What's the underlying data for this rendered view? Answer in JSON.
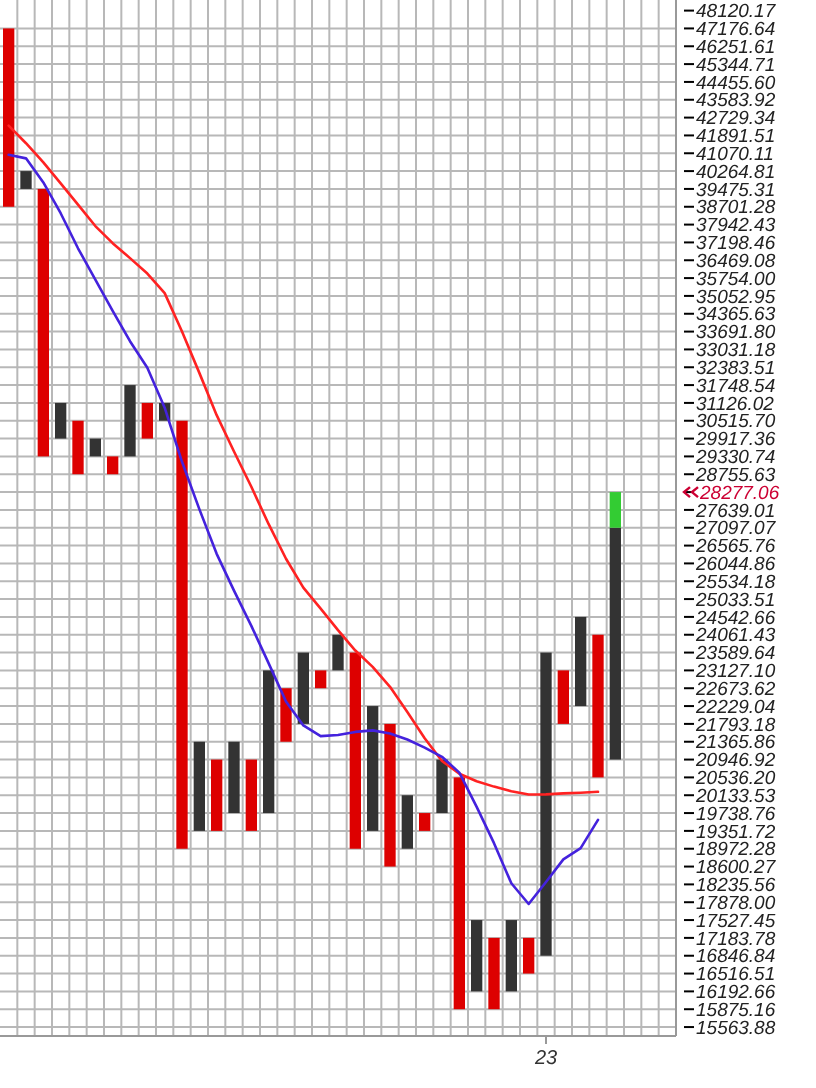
{
  "chart_data": {
    "type": "bar",
    "log": true,
    "grid": true,
    "ylim": [
      15410,
      48690
    ],
    "categories": [
      null,
      null,
      null,
      null,
      null,
      null,
      null,
      null,
      null,
      null,
      null,
      null,
      null,
      null,
      null,
      null,
      null,
      null,
      null,
      null,
      null,
      null,
      null,
      null,
      null,
      null,
      null,
      null,
      null,
      null,
      null,
      "23",
      null,
      null,
      null,
      null,
      null,
      null,
      null
    ],
    "yticks": [
      {
        "value": 15563.88,
        "label": "15563.88"
      },
      {
        "value": 15875.16,
        "label": "15875.16"
      },
      {
        "value": 16192.66,
        "label": "16192.66"
      },
      {
        "value": 16516.51,
        "label": "16516.51"
      },
      {
        "value": 16846.84,
        "label": "16846.84"
      },
      {
        "value": 17183.78,
        "label": "17183.78"
      },
      {
        "value": 17527.45,
        "label": "17527.45"
      },
      {
        "value": 17878,
        "label": "17878.00"
      },
      {
        "value": 18235.56,
        "label": "18235.56"
      },
      {
        "value": 18600.27,
        "label": "18600.27"
      },
      {
        "value": 18972.28,
        "label": "18972.28"
      },
      {
        "value": 19351.72,
        "label": "19351.72"
      },
      {
        "value": 19738.76,
        "label": "19738.76"
      },
      {
        "value": 20133.53,
        "label": "20133.53"
      },
      {
        "value": 20536.2,
        "label": "20536.20"
      },
      {
        "value": 20946.92,
        "label": "20946.92"
      },
      {
        "value": 21365.86,
        "label": "21365.86"
      },
      {
        "value": 21793.18,
        "label": "21793.18"
      },
      {
        "value": 22229.04,
        "label": "22229.04"
      },
      {
        "value": 22673.62,
        "label": "22673.62"
      },
      {
        "value": 23127.1,
        "label": "23127.10"
      },
      {
        "value": 23589.64,
        "label": "23589.64"
      },
      {
        "value": 24061.43,
        "label": "24061.43"
      },
      {
        "value": 24542.66,
        "label": "24542.66"
      },
      {
        "value": 25033.51,
        "label": "25033.51"
      },
      {
        "value": 25534.18,
        "label": "25534.18"
      },
      {
        "value": 26044.86,
        "label": "26044.86"
      },
      {
        "value": 26565.76,
        "label": "26565.76"
      },
      {
        "value": 27097.07,
        "label": "27097.07"
      },
      {
        "value": 27639.01,
        "label": "27639.01"
      },
      {
        "value": 28191.79,
        "label": null
      },
      {
        "value": 28755.63,
        "label": "28755.63"
      },
      {
        "value": 29330.74,
        "label": "29330.74"
      },
      {
        "value": 29917.36,
        "label": "29917.36"
      },
      {
        "value": 30515.7,
        "label": "30515.70"
      },
      {
        "value": 31126.02,
        "label": "31126.02"
      },
      {
        "value": 31748.54,
        "label": "31748.54"
      },
      {
        "value": 32383.51,
        "label": "32383.51"
      },
      {
        "value": 33031.18,
        "label": "33031.18"
      },
      {
        "value": 33691.8,
        "label": "33691.80"
      },
      {
        "value": 34365.63,
        "label": "34365.63"
      },
      {
        "value": 35052.95,
        "label": "35052.95"
      },
      {
        "value": 35754,
        "label": "35754.00"
      },
      {
        "value": 36469.08,
        "label": "36469.08"
      },
      {
        "value": 37198.46,
        "label": "37198.46"
      },
      {
        "value": 37942.43,
        "label": "37942.43"
      },
      {
        "value": 38701.28,
        "label": "38701.28"
      },
      {
        "value": 39475.31,
        "label": "39475.31"
      },
      {
        "value": 40264.81,
        "label": "40264.81"
      },
      {
        "value": 41070.11,
        "label": "41070.11"
      },
      {
        "value": 41891.51,
        "label": "41891.51"
      },
      {
        "value": 42729.34,
        "label": "42729.34"
      },
      {
        "value": 43583.92,
        "label": "43583.92"
      },
      {
        "value": 44455.6,
        "label": "44455.60"
      },
      {
        "value": 45344.71,
        "label": "45344.71"
      },
      {
        "value": 46251.61,
        "label": "46251.61"
      },
      {
        "value": 47176.64,
        "label": "47176.64"
      },
      {
        "value": 48120.17,
        "label": "48120.17"
      }
    ],
    "annotations": [
      "28277.06"
    ],
    "series": [
      {
        "base": [
          38701.28,
          39475.31,
          29330.74,
          29917.36,
          28755.63,
          29330.74,
          28755.63,
          29330.74,
          29917.36,
          30515.7,
          18972.28,
          19351.72,
          19351.72,
          19738.76,
          19351.72,
          19738.76,
          21365.86,
          21793.18,
          22673.62,
          23127.1,
          18972.28,
          19351.72,
          18600.27,
          18972.28,
          19351.72,
          19738.76,
          15875.16,
          16192.66,
          15875.16,
          16192.66,
          16516.51,
          16846.84,
          21793.18,
          22229.04,
          20536.2,
          20946.92,
          null,
          null,
          null
        ],
        "colors": [
          "#dd0000",
          "#333333",
          "#dd0000",
          "#333333",
          "#dd0000",
          "#333333",
          "#dd0000",
          "#333333",
          "#dd0000",
          "#333333",
          "#dd0000",
          "#333333",
          "#dd0000",
          "#333333",
          "#dd0000",
          "#333333",
          "#dd0000",
          "#333333",
          "#dd0000",
          "#333333",
          "#dd0000",
          "#333333",
          "#dd0000",
          "#333333",
          "#dd0000",
          "#333333",
          "#dd0000",
          "#333333",
          "#dd0000",
          "#333333",
          "#dd0000",
          "#333333",
          "#dd0000",
          "#333333",
          "#dd0000",
          "#333333",
          null,
          null,
          null
        ],
        "values": [
          8475.36,
          789.5,
          10144.57,
          1208.66,
          1760.07,
          586.62,
          575.11,
          2417.8,
          1208.66,
          610.32,
          11543.42,
          2014.14,
          1595.2,
          1627.1,
          1595.2,
          3388.34,
          1307.76,
          1796.46,
          453.48,
          934.33,
          4617.36,
          2877.32,
          3192.91,
          1161.25,
          387.04,
          1208.16,
          4661.04,
          1334.79,
          1308.62,
          1334.79,
          667.27,
          6742.8,
          1333.92,
          2313.62,
          3525.23,
          6150.15,
          null,
          null,
          null
        ]
      },
      {
        "color": "#33cc33",
        "base": [
          null,
          null,
          null,
          null,
          null,
          null,
          null,
          null,
          null,
          null,
          null,
          null,
          null,
          null,
          null,
          null,
          null,
          null,
          null,
          null,
          null,
          null,
          null,
          null,
          null,
          null,
          null,
          null,
          null,
          null,
          null,
          null,
          null,
          null,
          null,
          27097.07,
          null,
          null,
          null
        ],
        "values": [
          null,
          null,
          null,
          null,
          null,
          null,
          null,
          null,
          null,
          null,
          null,
          null,
          null,
          null,
          null,
          null,
          null,
          null,
          null,
          null,
          null,
          null,
          null,
          null,
          null,
          null,
          null,
          null,
          null,
          null,
          null,
          null,
          null,
          null,
          null,
          1094.72,
          null,
          null,
          null
        ]
      },
      {
        "type": "line",
        "color": "#ff2222",
        "values": [
          42350,
          41530,
          40657,
          39721,
          38792,
          37881,
          37167,
          36556,
          35935,
          35161,
          33692,
          32182,
          30705,
          29492,
          28358,
          27204,
          26180,
          25352,
          24769,
          24186,
          23643,
          23219,
          22709,
          22082,
          21448,
          20912,
          20618,
          20449,
          20327,
          20224,
          20149,
          20152,
          20174,
          20188,
          20210,
          null,
          null,
          null,
          null
        ]
      },
      {
        "type": "line",
        "color": "#4422dd",
        "values": [
          41001,
          40838,
          39759,
          38425,
          36958,
          35691,
          34478,
          33335,
          32368,
          30963,
          29156,
          27664,
          26323,
          25269,
          24299,
          23309,
          22341,
          21757,
          21499,
          21527,
          21600,
          21637,
          21564,
          21419,
          21228,
          21011,
          20645,
          19876,
          19090,
          18259,
          17843,
          18284,
          18749,
          18986,
          19589,
          null,
          null,
          null,
          null
        ]
      }
    ]
  }
}
